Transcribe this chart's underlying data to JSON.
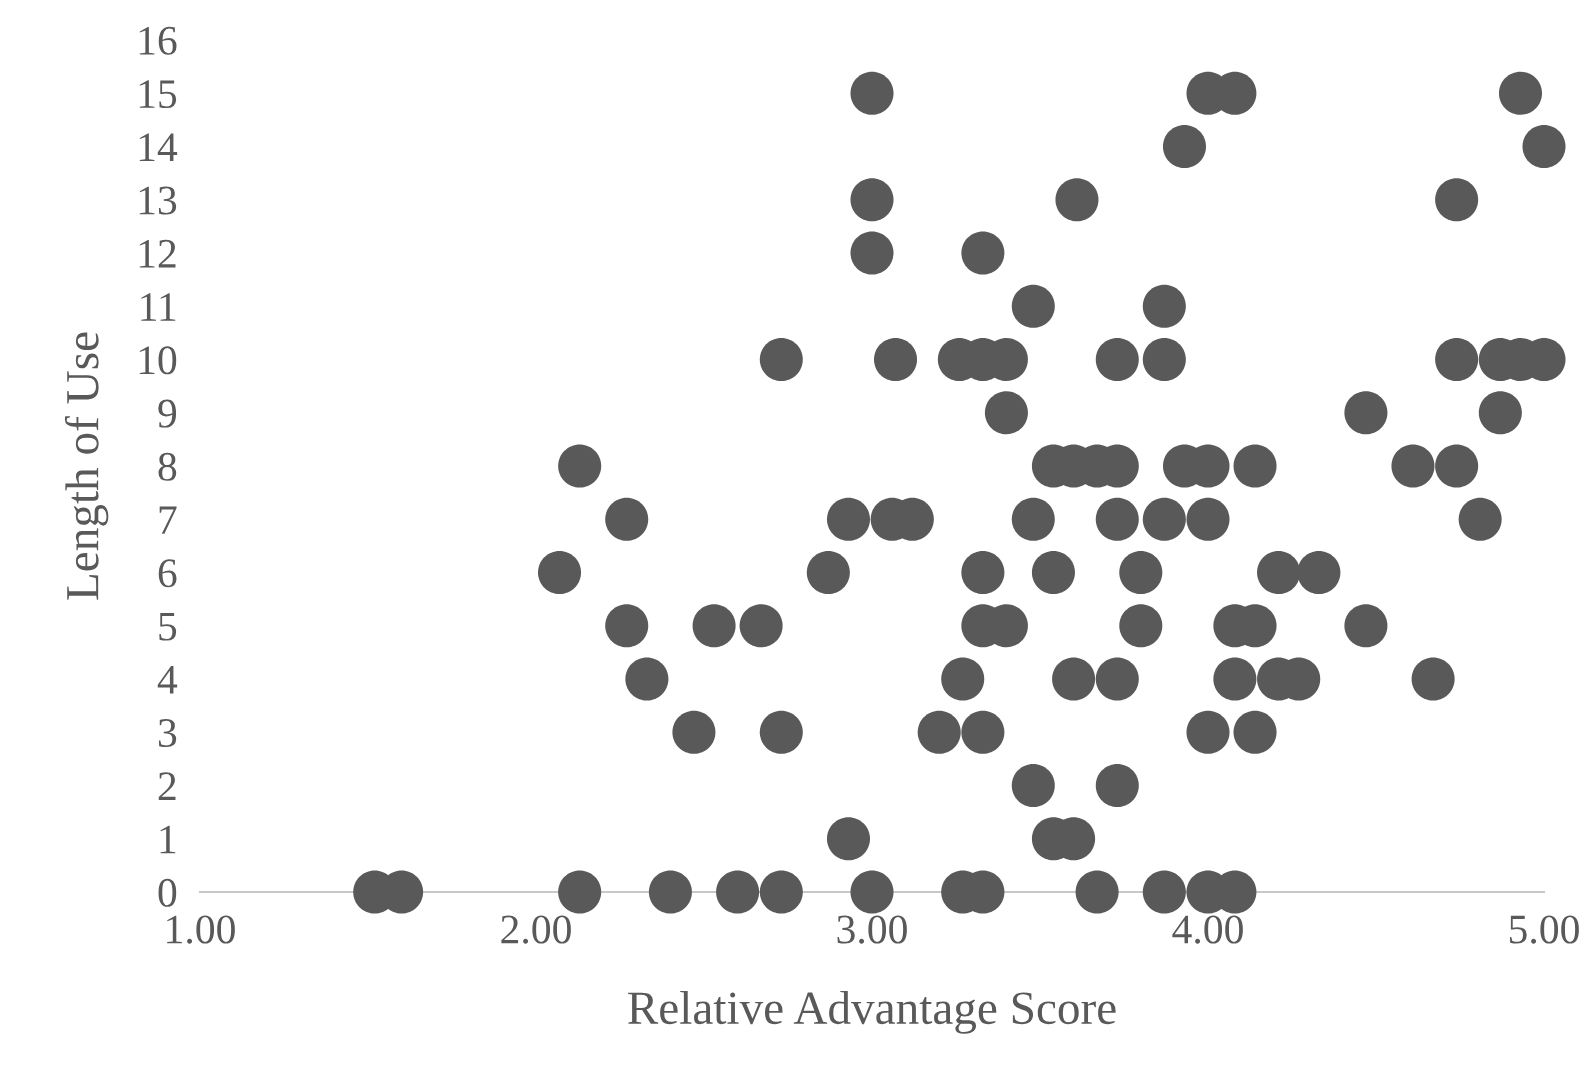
{
  "chart_data": {
    "type": "scatter",
    "xlabel": "Relative Advantage Score",
    "ylabel": "Length of Use",
    "xlim": [
      1,
      5
    ],
    "ylim": [
      0,
      16
    ],
    "xticks": [
      {
        "value": 1,
        "label": "1.00"
      },
      {
        "value": 2,
        "label": "2.00"
      },
      {
        "value": 3,
        "label": "3.00"
      },
      {
        "value": 4,
        "label": "4.00"
      },
      {
        "value": 5,
        "label": "5.00"
      }
    ],
    "yticks": [
      0,
      1,
      2,
      3,
      4,
      5,
      6,
      7,
      8,
      9,
      10,
      11,
      12,
      13,
      14,
      15,
      16
    ],
    "grid": false,
    "marker": "circle",
    "series": [
      {
        "color": "#595959",
        "x": [
          3.0,
          4.0,
          4.08,
          4.93,
          3.93,
          5.0,
          3.0,
          3.61,
          4.74,
          3.0,
          3.33,
          3.48,
          3.87,
          2.73,
          3.07,
          3.26,
          3.33,
          3.4,
          3.73,
          3.87,
          4.74,
          4.87,
          4.93,
          5.0,
          3.4,
          4.47,
          4.87,
          2.13,
          3.54,
          3.6,
          3.67,
          3.73,
          3.93,
          4.0,
          4.14,
          4.61,
          4.74,
          2.27,
          2.93,
          3.06,
          3.12,
          3.48,
          3.73,
          3.87,
          4.0,
          4.81,
          2.07,
          2.87,
          3.33,
          3.54,
          3.8,
          4.21,
          4.33,
          2.27,
          2.53,
          2.67,
          3.33,
          3.4,
          3.8,
          4.08,
          4.14,
          4.47,
          2.33,
          3.27,
          3.6,
          3.73,
          4.08,
          4.21,
          4.27,
          4.67,
          2.47,
          2.73,
          3.2,
          3.33,
          4.0,
          4.14,
          3.48,
          3.73,
          2.93,
          3.54,
          3.6,
          1.52,
          1.6,
          2.13,
          2.4,
          2.6,
          2.73,
          3.0,
          3.27,
          3.33,
          3.67,
          3.87,
          4.0,
          4.08
        ],
        "values": [
          15,
          15,
          15,
          15,
          14,
          14,
          13,
          13,
          13,
          12,
          12,
          11,
          11,
          10,
          10,
          10,
          10,
          10,
          10,
          10,
          10,
          10,
          10,
          10,
          9,
          9,
          9,
          8,
          8,
          8,
          8,
          8,
          8,
          8,
          8,
          8,
          8,
          7,
          7,
          7,
          7,
          7,
          7,
          7,
          7,
          7,
          6,
          6,
          6,
          6,
          6,
          6,
          6,
          5,
          5,
          5,
          5,
          5,
          5,
          5,
          5,
          5,
          4,
          4,
          4,
          4,
          4,
          4,
          4,
          4,
          3,
          3,
          3,
          3,
          3,
          3,
          2,
          2,
          1,
          1,
          1,
          0,
          0,
          0,
          0,
          0,
          0,
          0,
          0,
          0,
          0,
          0,
          0,
          0
        ]
      }
    ]
  }
}
